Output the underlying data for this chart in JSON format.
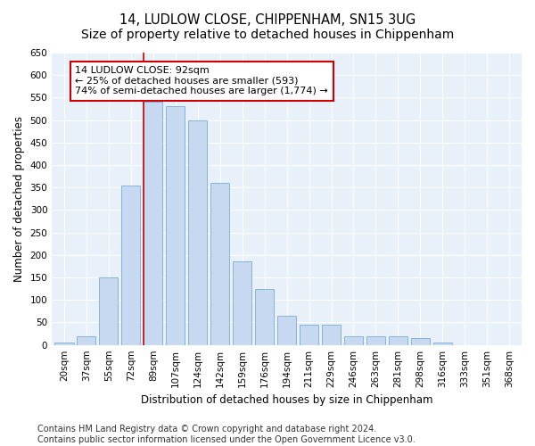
{
  "title": "14, LUDLOW CLOSE, CHIPPENHAM, SN15 3UG",
  "subtitle": "Size of property relative to detached houses in Chippenham",
  "xlabel": "Distribution of detached houses by size in Chippenham",
  "ylabel": "Number of detached properties",
  "categories": [
    "20sqm",
    "37sqm",
    "55sqm",
    "72sqm",
    "89sqm",
    "107sqm",
    "124sqm",
    "142sqm",
    "159sqm",
    "176sqm",
    "194sqm",
    "211sqm",
    "229sqm",
    "246sqm",
    "263sqm",
    "281sqm",
    "298sqm",
    "316sqm",
    "333sqm",
    "351sqm",
    "368sqm"
  ],
  "values": [
    5,
    20,
    150,
    355,
    540,
    530,
    500,
    360,
    185,
    125,
    65,
    45,
    45,
    20,
    20,
    20,
    15,
    5,
    0,
    0,
    0
  ],
  "bar_color": "#c6d9f1",
  "bar_edge_color": "#7aadd4",
  "highlight_index": 4,
  "highlight_line_color": "#cc0000",
  "annotation_text": "14 LUDLOW CLOSE: 92sqm\n← 25% of detached houses are smaller (593)\n74% of semi-detached houses are larger (1,774) →",
  "annotation_box_color": "#ffffff",
  "annotation_box_edge_color": "#cc0000",
  "ylim": [
    0,
    650
  ],
  "yticks": [
    0,
    50,
    100,
    150,
    200,
    250,
    300,
    350,
    400,
    450,
    500,
    550,
    600,
    650
  ],
  "footer_line1": "Contains HM Land Registry data © Crown copyright and database right 2024.",
  "footer_line2": "Contains public sector information licensed under the Open Government Licence v3.0.",
  "bg_color": "#e8f0fa",
  "fig_bg_color": "#ffffff",
  "title_fontsize": 10.5,
  "axis_label_fontsize": 8.5,
  "tick_fontsize": 7.5,
  "footer_fontsize": 7
}
